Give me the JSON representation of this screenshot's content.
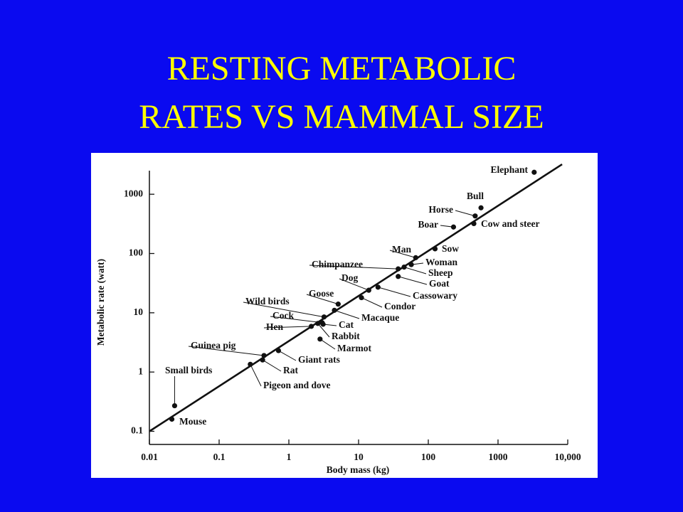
{
  "chart_data": {
    "type": "scatter",
    "title": [
      "RESTING METABOLIC",
      "RATES VS MAMMAL SIZE"
    ],
    "x_label": "Body mass (kg)",
    "y_label": "Metabolic rate (watt)",
    "log_x": true,
    "log_y": true,
    "xlim": [
      0.01,
      10000
    ],
    "ylim": [
      0.06,
      2500
    ],
    "xticks": [
      0.01,
      0.1,
      1,
      10,
      100,
      1000,
      {
        "value": 10000,
        "label": "10,000"
      }
    ],
    "yticks": [
      0.1,
      1,
      10,
      100,
      1000
    ],
    "color": "#111111",
    "point_labels": [
      "Elephant",
      "Bull",
      "Horse",
      "Boar",
      "Cow and steer",
      "Man",
      "Sow",
      "Woman",
      "Sheep",
      "Chimpanzee",
      "Goat",
      "Cassowary",
      "Dog",
      "Condor",
      "Goose",
      "Macaque",
      "Wild birds",
      "Cock",
      "Cat",
      "Hen",
      "Rabbit",
      "Marmot",
      "Giant rats",
      "Guinea pig",
      "Rat",
      "Pigeon and dove",
      "Small birds",
      "Mouse"
    ],
    "x": [
      3300,
      570,
      470,
      230,
      450,
      66,
      125,
      57,
      45,
      37,
      37,
      19,
      14,
      11,
      5.1,
      4.5,
      3.2,
      3,
      3.1,
      2.1,
      2.6,
      2.8,
      0.71,
      0.44,
      0.42,
      0.28,
      0.023,
      0.021
    ],
    "values": [
      2350,
      590,
      430,
      280,
      320,
      85,
      120,
      65,
      59,
      55,
      41,
      27,
      24,
      18,
      14,
      11,
      8.5,
      6.8,
      6.4,
      5.9,
      6.6,
      3.6,
      2.3,
      1.9,
      1.6,
      1.35,
      0.27,
      0.16
    ],
    "fit": {
      "x": [
        0.01,
        8300
      ],
      "y": [
        0.1,
        3200
      ]
    }
  }
}
